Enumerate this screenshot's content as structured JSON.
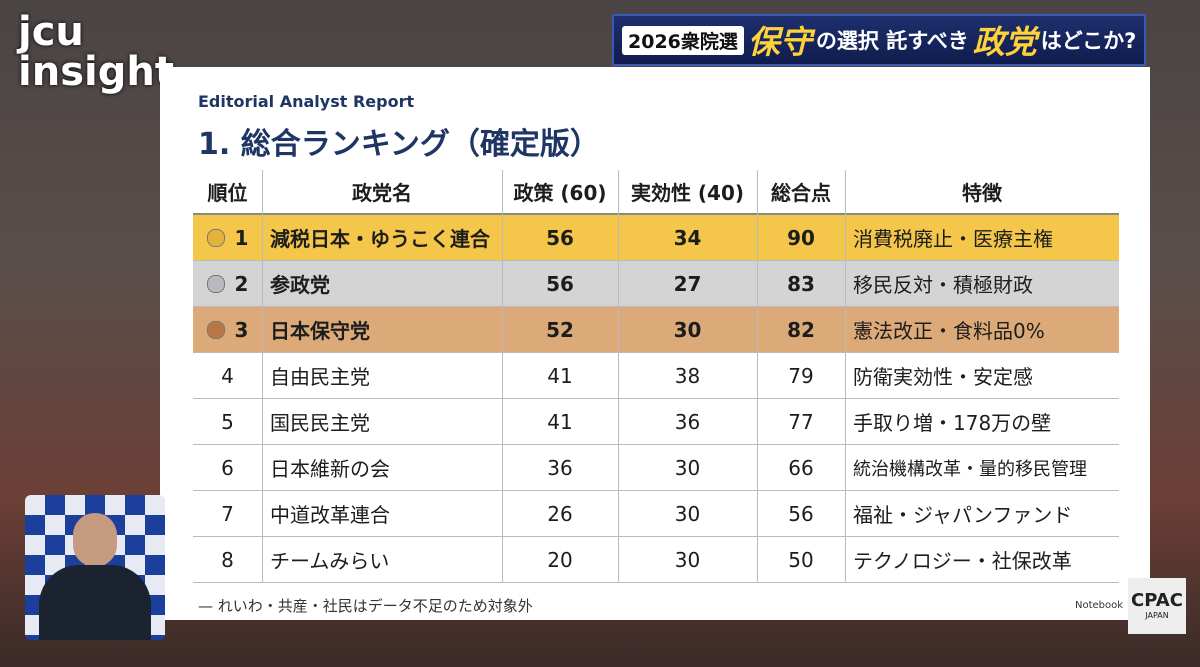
{
  "brand": {
    "line1": "jcu",
    "line2": "insight"
  },
  "banner": {
    "parts": [
      "2026衆院選",
      "保守",
      "の選択 託すべき",
      "政党",
      "はどこか?"
    ]
  },
  "report": {
    "label": "Editorial Analyst Report",
    "title": "1. 総合ランキング（確定版）"
  },
  "table": {
    "header": [
      "順位",
      "政党名",
      "政策 (60)",
      "実効性 (40)",
      "総合点",
      "特徴"
    ],
    "rows": [
      [
        "1",
        "減税日本・ゆうこく連合",
        "56",
        "34",
        "90",
        "消費税廃止・医療主権"
      ],
      [
        "2",
        "参政党",
        "56",
        "27",
        "83",
        "移民反対・積極財政"
      ],
      [
        "3",
        "日本保守党",
        "52",
        "30",
        "82",
        "憲法改正・食料品0%"
      ],
      [
        "4",
        "自由民主党",
        "41",
        "38",
        "79",
        "防衛実効性・安定感"
      ],
      [
        "5",
        "国民民主党",
        "41",
        "36",
        "77",
        "手取り増・178万の壁"
      ],
      [
        "6",
        "日本維新の会",
        "36",
        "30",
        "66",
        "統治機構改革・量的移民管理"
      ],
      [
        "7",
        "中道改革連合",
        "26",
        "30",
        "56",
        "福祉・ジャパンファンド"
      ],
      [
        "8",
        "チームみらい",
        "20",
        "30",
        "50",
        "テクノロジー・社保改革"
      ]
    ]
  },
  "footnote": "— れいわ・共産・社民はデータ不足のため対象外",
  "watermark": "Notebook",
  "logo": {
    "name": "CPAC",
    "sub": "JAPAN"
  }
}
